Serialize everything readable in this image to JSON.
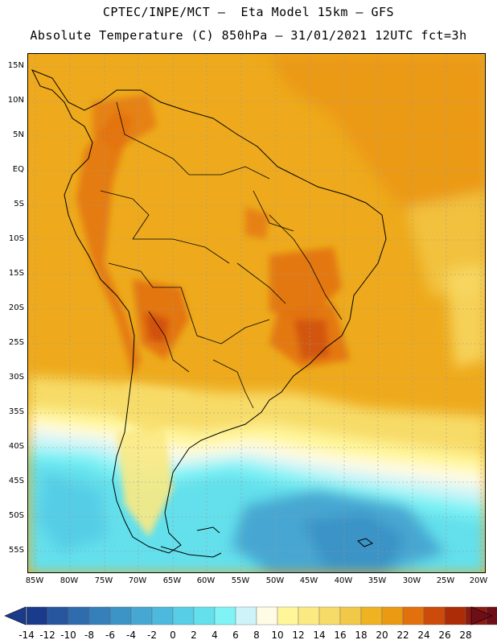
{
  "header": {
    "title_line1": "CPTEC/INPE/MCT –  Eta Model 15km – GFS",
    "title_line2": "Absolute Temperature (C) 850hPa – 31/01/2021 12UTC fct=3h"
  },
  "map": {
    "latitude_labels": [
      "15N",
      "10N",
      "5N",
      "EQ",
      "5S",
      "10S",
      "15S",
      "20S",
      "25S",
      "30S",
      "35S",
      "40S",
      "45S",
      "50S",
      "55S"
    ],
    "longitude_labels": [
      "85W",
      "80W",
      "75W",
      "70W",
      "65W",
      "60W",
      "55W",
      "50W",
      "45W",
      "40W",
      "35W",
      "30W",
      "25W",
      "20W"
    ]
  },
  "colorbar": {
    "labels": [
      "-14",
      "-12",
      "-10",
      "-8",
      "-6",
      "-4",
      "-2",
      "0",
      "2",
      "4",
      "6",
      "8",
      "10",
      "12",
      "14",
      "16",
      "18",
      "20",
      "22",
      "24",
      "26",
      "28"
    ],
    "colors": [
      "#1a3b8c",
      "#27569f",
      "#2f6cad",
      "#3580ba",
      "#3b93c6",
      "#46a7d2",
      "#4db9dd",
      "#57cde6",
      "#63e0ec",
      "#7ff3f5",
      "#cdf4f8",
      "#fffbe5",
      "#fff69a",
      "#fbe982",
      "#f7db68",
      "#f2c848",
      "#efb321",
      "#eb9a14",
      "#e2700c",
      "#cc4a0a",
      "#ad2c08",
      "#8c1a10",
      "#6e0f18"
    ]
  }
}
